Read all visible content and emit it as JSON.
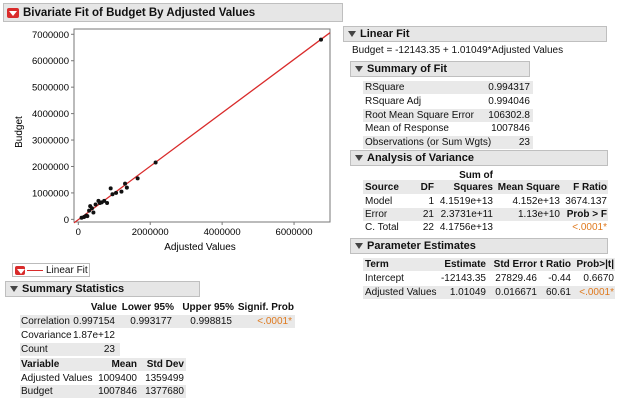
{
  "main_title": "Bivariate Fit of Budget By Adjusted Values",
  "plot": {
    "ylabel": "Budget",
    "xlabel": "Adjusted Values",
    "yticks": [
      "7000000",
      "6000000",
      "5000000",
      "4000000",
      "3000000",
      "2000000",
      "1000000",
      "0"
    ],
    "xticks": [
      "0",
      "2000000",
      "4000000",
      "6000000"
    ],
    "points": [
      [
        90000,
        60000
      ],
      [
        160000,
        90000
      ],
      [
        220000,
        140000
      ],
      [
        250000,
        120000
      ],
      [
        300000,
        330000
      ],
      [
        330000,
        500000
      ],
      [
        380000,
        420000
      ],
      [
        420000,
        260000
      ],
      [
        480000,
        560000
      ],
      [
        560000,
        700000
      ],
      [
        600000,
        620000
      ],
      [
        650000,
        640000
      ],
      [
        720000,
        700000
      ],
      [
        800000,
        620000
      ],
      [
        900000,
        1170000
      ],
      [
        950000,
        950000
      ],
      [
        1050000,
        1000000
      ],
      [
        1200000,
        1050000
      ],
      [
        1300000,
        1350000
      ],
      [
        1350000,
        1200000
      ],
      [
        1650000,
        1550000
      ],
      [
        2150000,
        2150000
      ],
      [
        6750000,
        6800000
      ]
    ],
    "fit_color": "#d92b2b",
    "point_color": "#111111"
  },
  "legend": {
    "label": "Linear Fit"
  },
  "summary_statistics": {
    "title": "Summary Statistics",
    "headers": [
      "Value",
      "Lower 95%",
      "Upper 95%",
      "Signif. Prob"
    ],
    "rows": [
      {
        "label": "Correlation",
        "value": "0.997154",
        "lower": "0.993177",
        "upper": "0.998815",
        "prob": "<.0001*"
      },
      {
        "label": "Covariance",
        "value": "1.87e+12",
        "lower": "",
        "upper": "",
        "prob": ""
      },
      {
        "label": "Count",
        "value": "23",
        "lower": "",
        "upper": "",
        "prob": ""
      }
    ],
    "var_headers": [
      "Variable",
      "Mean",
      "Std Dev"
    ],
    "var_rows": [
      {
        "label": "Adjusted Values",
        "mean": "1009400",
        "sd": "1359499"
      },
      {
        "label": "Budget",
        "mean": "1007846",
        "sd": "1377680"
      }
    ]
  },
  "linear_fit": {
    "title": "Linear Fit",
    "equation": "Budget = -12143.35 + 1.01049*Adjusted Values",
    "summary_of_fit": {
      "title": "Summary of Fit",
      "rows": [
        {
          "label": "RSquare",
          "value": "0.994317"
        },
        {
          "label": "RSquare Adj",
          "value": "0.994046"
        },
        {
          "label": "Root Mean Square Error",
          "value": "106302.8"
        },
        {
          "label": "Mean of Response",
          "value": "1007846"
        },
        {
          "label": "Observations (or Sum Wgts)",
          "value": "23"
        }
      ]
    },
    "anova": {
      "title": "Analysis of Variance",
      "headers": {
        "source": "Source",
        "df": "DF",
        "ss_top": "Sum of",
        "ss_bottom": "Squares",
        "ms": "Mean Square",
        "f": "F Ratio"
      },
      "rows": [
        {
          "source": "Model",
          "df": "1",
          "ss": "4.1519e+13",
          "ms": "4.152e+13",
          "f": "3674.137"
        },
        {
          "source": "Error",
          "df": "21",
          "ss": "2.3731e+11",
          "ms": "1.13e+10",
          "f": "Prob > F"
        },
        {
          "source": "C. Total",
          "df": "22",
          "ss": "4.1756e+13",
          "ms": "",
          "f": "<.0001*"
        }
      ]
    },
    "parameter_estimates": {
      "title": "Parameter Estimates",
      "headers": [
        "Term",
        "Estimate",
        "Std Error",
        "t Ratio",
        "Prob>|t|"
      ],
      "rows": [
        {
          "term": "Intercept",
          "est": "-12143.35",
          "se": "27829.46",
          "t": "-0.44",
          "p": "0.6670"
        },
        {
          "term": "Adjusted Values",
          "est": "1.01049",
          "se": "0.016671",
          "t": "60.61",
          "p": "<.0001*"
        }
      ]
    }
  }
}
